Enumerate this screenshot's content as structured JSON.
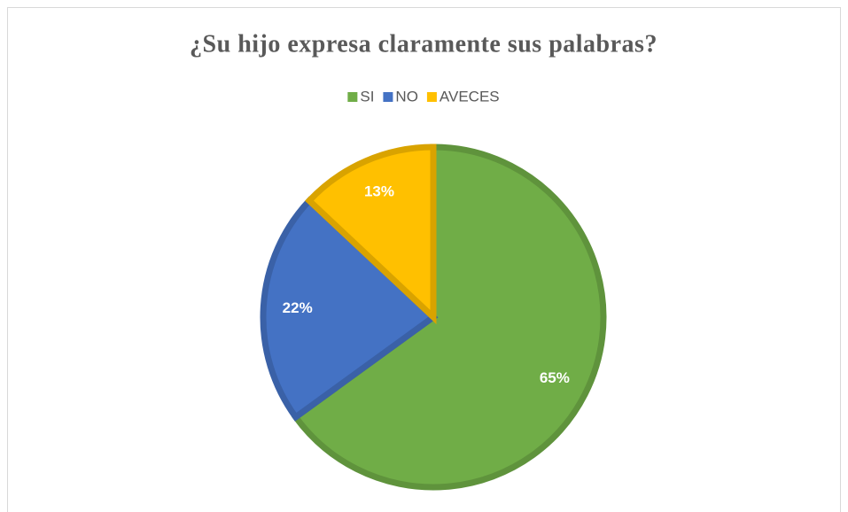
{
  "chart_data": {
    "type": "pie",
    "title": "¿Su hijo expresa claramente sus palabras?",
    "categories": [
      "SI",
      "NO",
      "AVECES"
    ],
    "values": [
      65,
      22,
      13
    ],
    "value_labels": [
      "65%",
      "22%",
      "13%"
    ],
    "colors": [
      "#70ad47",
      "#4472c4",
      "#ffc000"
    ],
    "legend": "top"
  }
}
